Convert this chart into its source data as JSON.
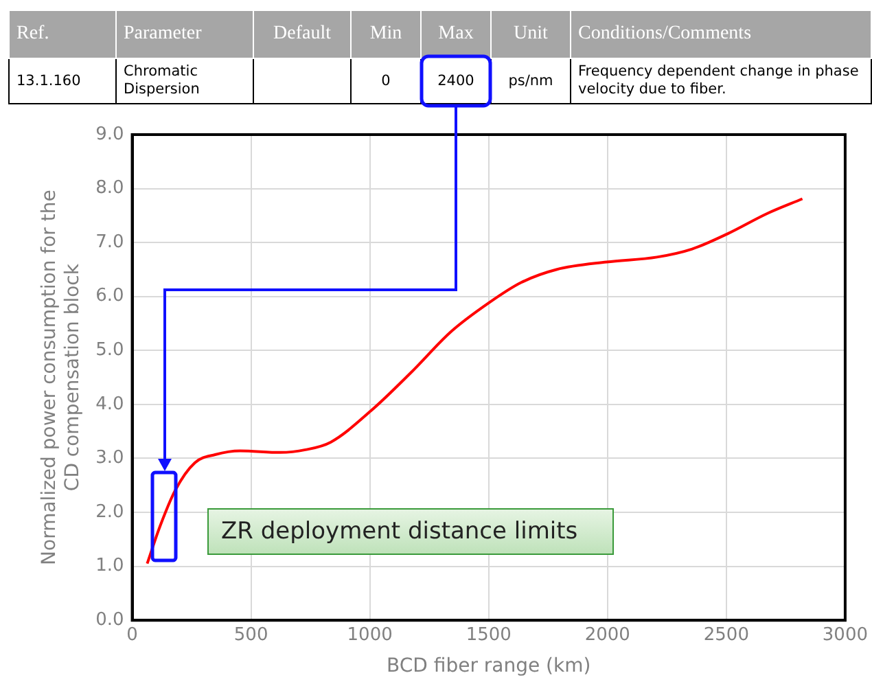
{
  "chart_data": {
    "type": "line",
    "xlabel": "BCD fiber range (km)",
    "ylabel": "Normalized power consumption for the CD compensation block",
    "series": [
      {
        "color": "#ff0000",
        "x": [
          63,
          116,
          180,
          264,
          349,
          454,
          623,
          729,
          835,
          1004,
          1173,
          1342,
          1500,
          1637,
          1785,
          1996,
          2208,
          2356,
          2504,
          2673,
          2820
        ],
        "values": [
          1.05,
          1.73,
          2.4,
          2.92,
          3.07,
          3.14,
          3.11,
          3.16,
          3.3,
          3.88,
          4.59,
          5.35,
          5.88,
          6.26,
          6.5,
          6.64,
          6.73,
          6.88,
          7.16,
          7.54,
          7.81
        ]
      }
    ],
    "xlim": [
      0,
      3000
    ],
    "xticks": [
      0,
      500,
      1000,
      1500,
      2000,
      2500,
      3000
    ],
    "ylim": [
      0,
      9
    ],
    "yticks": [
      {
        "value": 0,
        "label": "0.0"
      },
      {
        "value": 1,
        "label": "1.0"
      },
      {
        "value": 2,
        "label": "2.0"
      },
      {
        "value": 3,
        "label": "3.0"
      },
      {
        "value": 4,
        "label": "4.0"
      },
      {
        "value": 5,
        "label": "5.0"
      },
      {
        "value": 6,
        "label": "6.0"
      },
      {
        "value": 7,
        "label": "7.0"
      },
      {
        "value": 8,
        "label": "8.0"
      },
      {
        "value": 9,
        "label": "9.0"
      }
    ],
    "grid": true,
    "legend": false,
    "marker": "none",
    "line_style": "solid",
    "annotations": [
      "Ref.",
      "Parameter",
      "Default",
      "Min",
      "Max",
      "Unit",
      "Conditions/Comments",
      "13.1.160",
      "Chromatic Dispersion",
      "0",
      "2400",
      "ps/nm",
      "Frequency dependent change in phase velocity due to fiber.",
      "ZR deployment distance limits"
    ]
  }
}
